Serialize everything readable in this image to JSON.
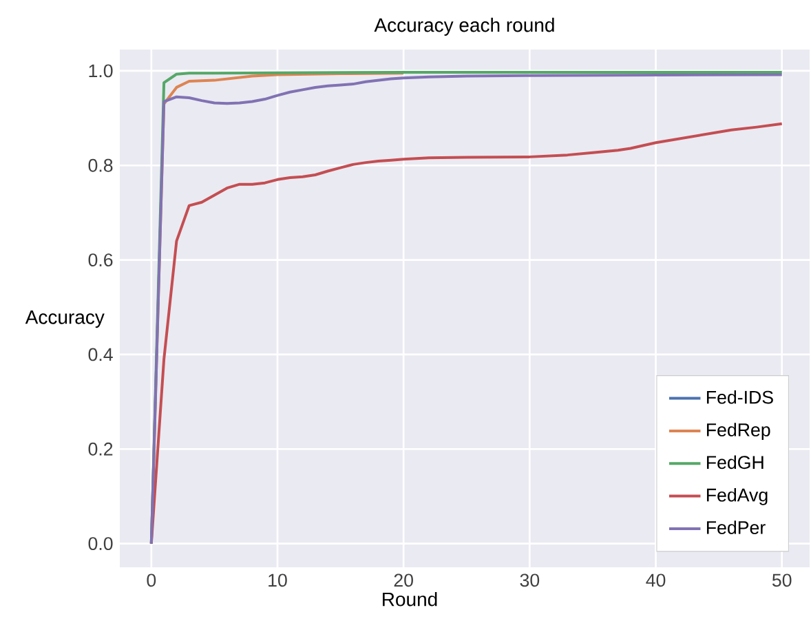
{
  "chart_data": {
    "type": "line",
    "title": "Accuracy each round",
    "xlabel": "Round",
    "ylabel": "Accuracy",
    "xlim": [
      -2.5,
      52.2
    ],
    "ylim": [
      -0.05,
      1.045
    ],
    "xticks": [
      0,
      10,
      20,
      30,
      40,
      50
    ],
    "yticks": [
      {
        "value": 0,
        "label": "0.0"
      },
      {
        "value": 0.2,
        "label": "0.2"
      },
      {
        "value": 0.4,
        "label": "0.4"
      },
      {
        "value": 0.6,
        "label": "0.6"
      },
      {
        "value": 0.8,
        "label": "0.8"
      },
      {
        "value": 1.0,
        "label": "1.0"
      }
    ],
    "grid": true,
    "legend": "bottom right",
    "marker": "none",
    "line_style": "solid",
    "series": [
      {
        "name": "Fed-IDS",
        "color": "#4c72b0",
        "values": [
          null
        ]
      },
      {
        "name": "FedRep",
        "color": "#dd8452",
        "x": [
          0,
          1,
          2,
          3,
          4,
          5,
          6,
          7,
          8,
          10,
          15,
          20
        ],
        "values": [
          0,
          0.93,
          0.965,
          0.978,
          0.979,
          0.98,
          0.983,
          0.986,
          0.989,
          0.992,
          0.994,
          0.995
        ]
      },
      {
        "name": "FedGH",
        "color": "#55a868",
        "x": [
          0,
          1,
          2,
          3,
          5,
          10,
          20,
          30,
          40,
          50
        ],
        "values": [
          0,
          0.975,
          0.993,
          0.995,
          0.995,
          0.996,
          0.997,
          0.997,
          0.997,
          0.997
        ]
      },
      {
        "name": "FedAvg",
        "color": "#c44e52",
        "x": [
          0,
          1,
          2,
          3,
          4,
          5,
          6,
          7,
          8,
          9,
          10,
          11,
          12,
          13,
          14,
          15,
          16,
          17,
          18,
          19,
          20,
          22,
          25,
          30,
          33,
          35,
          37,
          38,
          40,
          42,
          44,
          46,
          48,
          50
        ],
        "values": [
          0,
          0.39,
          0.64,
          0.715,
          0.722,
          0.737,
          0.752,
          0.76,
          0.76,
          0.763,
          0.77,
          0.774,
          0.776,
          0.78,
          0.788,
          0.795,
          0.802,
          0.806,
          0.809,
          0.811,
          0.813,
          0.816,
          0.817,
          0.818,
          0.822,
          0.827,
          0.832,
          0.836,
          0.848,
          0.857,
          0.866,
          0.875,
          0.881,
          0.888
        ]
      },
      {
        "name": "FedPer",
        "color": "#8172b3",
        "x": [
          0,
          1,
          2,
          3,
          4,
          5,
          6,
          7,
          8,
          9,
          10,
          11,
          12,
          13,
          14,
          15,
          16,
          17,
          18,
          19,
          20,
          22,
          25,
          30,
          50
        ],
        "values": [
          0,
          0.935,
          0.945,
          0.943,
          0.937,
          0.932,
          0.931,
          0.932,
          0.935,
          0.94,
          0.948,
          0.955,
          0.96,
          0.965,
          0.968,
          0.97,
          0.972,
          0.977,
          0.98,
          0.983,
          0.985,
          0.987,
          0.989,
          0.99,
          0.992
        ]
      }
    ]
  }
}
